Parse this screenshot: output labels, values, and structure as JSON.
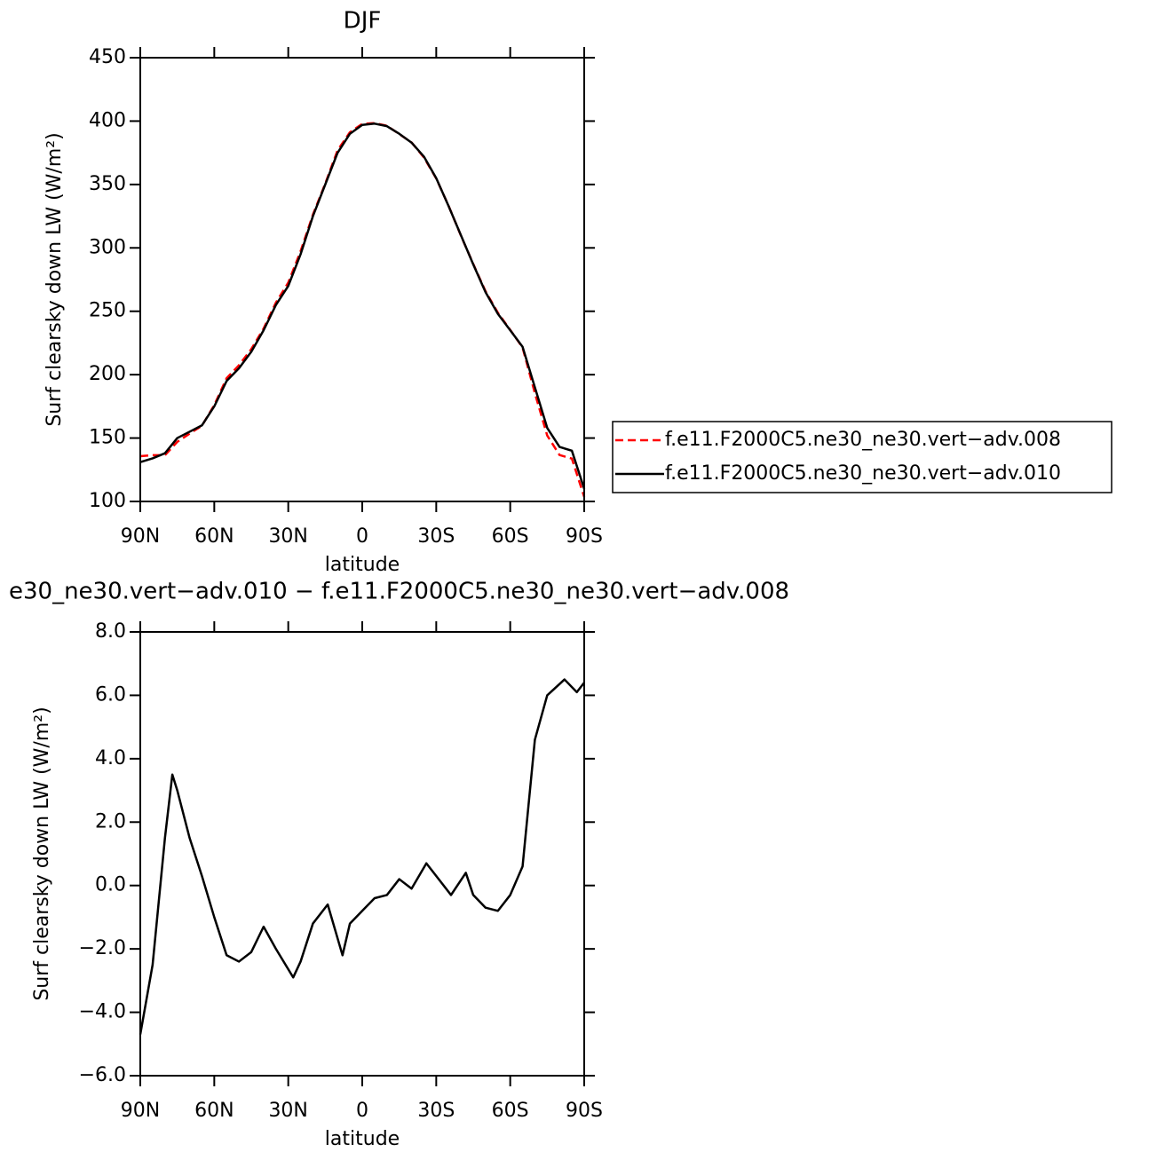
{
  "chart_data": [
    {
      "type": "line",
      "title": "DJF",
      "x_label": "latitude",
      "y_label": "Surf clearsky down LW (W/m²)",
      "x": [
        90,
        85,
        80,
        75,
        70,
        65,
        60,
        55,
        50,
        45,
        40,
        35,
        30,
        25,
        20,
        15,
        10,
        5,
        0,
        -5,
        -10,
        -15,
        -20,
        -25,
        -30,
        -35,
        -40,
        -45,
        -50,
        -55,
        -60,
        -65,
        -70,
        -75,
        -80,
        -85,
        -90
      ],
      "xlim": [
        90,
        -90
      ],
      "xticks": [
        {
          "value": 90,
          "label": "90N"
        },
        {
          "value": 60,
          "label": "60N"
        },
        {
          "value": 30,
          "label": "30N"
        },
        0,
        {
          "value": -30,
          "label": "30S"
        },
        {
          "value": -60,
          "label": "60S"
        },
        {
          "value": -90,
          "label": "90S"
        }
      ],
      "ylim": [
        100,
        450
      ],
      "yticks": [
        100,
        150,
        200,
        250,
        300,
        350,
        400,
        450
      ],
      "legend": "outside-right",
      "series": [
        {
          "name": "f.e11.F2000C5.ne30_ne30.vert−adv.008",
          "color": "#ff0000",
          "dash": true,
          "values": [
            135.7,
            136.5,
            136.5,
            147,
            153.5,
            159.7,
            176,
            197.2,
            207.4,
            220.1,
            236.4,
            256.9,
            272.6,
            297.4,
            326.2,
            350.7,
            377,
            391.2,
            397.8,
            398.4,
            396.3,
            389.8,
            383.1,
            371.4,
            354.7,
            333.2,
            309.7,
            287.3,
            265.7,
            248.8,
            235.3,
            221.4,
            185.4,
            152,
            136.6,
            133.8,
            103.6
          ]
        },
        {
          "name": "f.e11.F2000C5.ne30_ne30.vert−adv.010",
          "color": "#000000",
          "dash": false,
          "values": [
            131,
            134,
            138,
            150,
            155,
            160,
            175,
            195,
            205,
            218,
            235,
            255,
            270,
            295,
            325,
            350,
            375,
            390,
            397,
            398,
            396,
            390,
            383,
            372,
            355,
            333,
            310,
            287,
            265,
            248,
            235,
            222,
            190,
            158,
            143,
            140,
            110
          ]
        }
      ]
    },
    {
      "type": "line",
      "title": "e30_ne30.vert−adv.010 − f.e11.F2000C5.ne30_ne30.vert−adv.008",
      "x_label": "latitude",
      "y_label": "Surf clearsky down LW (W/m²)",
      "x": [
        90,
        85,
        80,
        77,
        75,
        70,
        65,
        60,
        55,
        50,
        45,
        40,
        35,
        28,
        25,
        20,
        14,
        8,
        5,
        0,
        -5,
        -10,
        -15,
        -20,
        -26,
        -30,
        -36,
        -42,
        -45,
        -50,
        -55,
        -60,
        -65,
        -70,
        -75,
        -82,
        -87,
        -90
      ],
      "xlim": [
        90,
        -90
      ],
      "xticks": [
        {
          "value": 90,
          "label": "90N"
        },
        {
          "value": 60,
          "label": "60N"
        },
        {
          "value": 30,
          "label": "30N"
        },
        0,
        {
          "value": -30,
          "label": "30S"
        },
        {
          "value": -60,
          "label": "60S"
        },
        {
          "value": -90,
          "label": "90S"
        }
      ],
      "ylim": [
        -6,
        8
      ],
      "yticks": [
        {
          "value": -6,
          "label": "−6.0"
        },
        {
          "value": -4,
          "label": "−4.0"
        },
        {
          "value": -2,
          "label": "−2.0"
        },
        {
          "value": 0,
          "label": "0.0"
        },
        {
          "value": 2,
          "label": "2.0"
        },
        {
          "value": 4,
          "label": "4.0"
        },
        {
          "value": 6,
          "label": "6.0"
        },
        {
          "value": 8,
          "label": "8.0"
        }
      ],
      "series": [
        {
          "color": "#000000",
          "dash": false,
          "values": [
            -4.7,
            -2.5,
            1.5,
            3.5,
            3.0,
            1.5,
            0.3,
            -1.0,
            -2.2,
            -2.4,
            -2.1,
            -1.3,
            -2.0,
            -2.9,
            -2.4,
            -1.2,
            -0.6,
            -2.2,
            -1.2,
            -0.8,
            -0.4,
            -0.3,
            0.2,
            -0.1,
            0.7,
            0.3,
            -0.3,
            0.4,
            -0.3,
            -0.7,
            -0.8,
            -0.3,
            0.6,
            4.6,
            6.0,
            6.5,
            6.1,
            6.4
          ]
        }
      ]
    }
  ]
}
